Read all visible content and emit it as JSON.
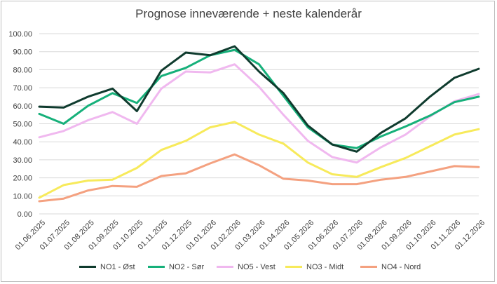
{
  "chart_data": {
    "type": "line",
    "title": "Prognose inneværende + neste kalenderår",
    "xlabel": "",
    "ylabel": "",
    "ylim": [
      0,
      100
    ],
    "y_ticks": [
      "0.00",
      "10.00",
      "20.00",
      "30.00",
      "40.00",
      "50.00",
      "60.00",
      "70.00",
      "80.00",
      "90.00",
      "100.00"
    ],
    "grid": true,
    "legend_position": "bottom",
    "categories": [
      "01.06.2025",
      "01.07.2025",
      "01.08.2025",
      "01.09.2025",
      "01.10.2025",
      "01.11.2025",
      "01.12.2025",
      "01.01.2026",
      "01.02.2026",
      "01.03.2026",
      "01.04.2026",
      "01.05.2026",
      "01.06.2026",
      "01.07.2026",
      "01.08.2026",
      "01.09.2026",
      "01.10.2026",
      "01.11.2026",
      "01.12.2026"
    ],
    "series": [
      {
        "name": "NO1 - Øst",
        "color": "#0f3b2e",
        "values": [
          59.5,
          59,
          65,
          69.5,
          57,
          79.5,
          89.5,
          88,
          93,
          79,
          67,
          49,
          38.5,
          34.5,
          45,
          53,
          65,
          75.5,
          80.5
        ]
      },
      {
        "name": "NO2 - Sør",
        "color": "#16b07a",
        "values": [
          55.5,
          50,
          60,
          67,
          61.5,
          76.5,
          81,
          88,
          91,
          83,
          65.5,
          48,
          38.5,
          36.5,
          43,
          48.5,
          54.5,
          62,
          65
        ]
      },
      {
        "name": "NO5 - Vest",
        "color": "#f0b8ef",
        "values": [
          42.5,
          46,
          52,
          56.5,
          50,
          69.5,
          79,
          78.5,
          83,
          70.5,
          55,
          40.5,
          31.5,
          28.5,
          37,
          44,
          54,
          62.5,
          66.5
        ]
      },
      {
        "name": "NO3 - Midt",
        "color": "#f7ea5b",
        "values": [
          9,
          16,
          18.5,
          19,
          25.5,
          35.5,
          40.5,
          48,
          51,
          44,
          39,
          28.5,
          22,
          20.5,
          26,
          31,
          37.5,
          44,
          47
        ]
      },
      {
        "name": "NO4 - Nord",
        "color": "#f4a180",
        "values": [
          7,
          8.5,
          13,
          15.5,
          15,
          21,
          22.5,
          28,
          33,
          27,
          19.5,
          18.5,
          16.5,
          16.5,
          19,
          20.5,
          23.5,
          26.5,
          26
        ]
      }
    ]
  }
}
